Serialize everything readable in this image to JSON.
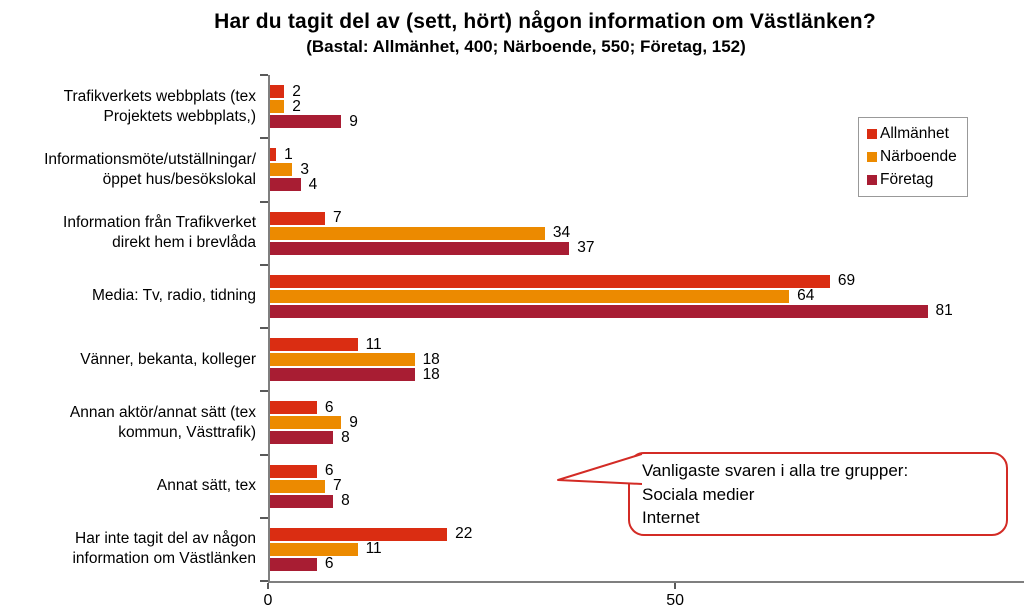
{
  "header": {
    "title": "Har du tagit del av (sett, hört) någon information om Västlänken?",
    "subtitle": "(Bastal: Allmänhet, 400; Närboende, 550; Företag, 152)"
  },
  "legend": {
    "items": [
      {
        "label": "Allmänhet",
        "color": "#DA2D12"
      },
      {
        "label": "Närboende",
        "color": "#EC8A00"
      },
      {
        "label": "Företag",
        "color": "#A81D33"
      }
    ]
  },
  "callout": {
    "text": "Vanligaste svaren i alla tre grupper:\nSociala medier\nInternet",
    "border_color": "#D32B25"
  },
  "chart_data": {
    "type": "bar",
    "orientation": "horizontal",
    "title": "Har du tagit del av (sett, hört) någon information om Västlänken?",
    "subtitle": "(Bastal: Allmänhet, 400; Närboende, 550; Företag, 152)",
    "categories": [
      "Trafikverkets webbplats (tex\nProjektets webbplats,)",
      "Informationsmöte/utställningar/\nöppet hus/besökslokal",
      "Information från Trafikverket\ndirekt hem i brevlåda",
      "Media: Tv, radio, tidning",
      "Vänner, bekanta, kolleger",
      "Annan aktör/annat sätt (tex\nkommun, Västtrafik)",
      "Annat sätt, tex",
      "Har inte tagit del av någon\ninformation om Västlänken"
    ],
    "series": [
      {
        "name": "Allmänhet",
        "color": "#DA2D12",
        "values": [
          2,
          1,
          7,
          69,
          11,
          6,
          6,
          22
        ]
      },
      {
        "name": "Närboende",
        "color": "#EC8A00",
        "values": [
          2,
          3,
          34,
          64,
          18,
          9,
          7,
          11
        ]
      },
      {
        "name": "Företag",
        "color": "#A81D33",
        "values": [
          9,
          4,
          37,
          81,
          18,
          8,
          8,
          6
        ]
      }
    ],
    "xlabel": "",
    "ylabel": "",
    "xlim": [
      0,
      92.6
    ],
    "xticks": [
      0,
      50
    ],
    "grid": false,
    "value_labels": true,
    "legend_position": "top-right"
  }
}
